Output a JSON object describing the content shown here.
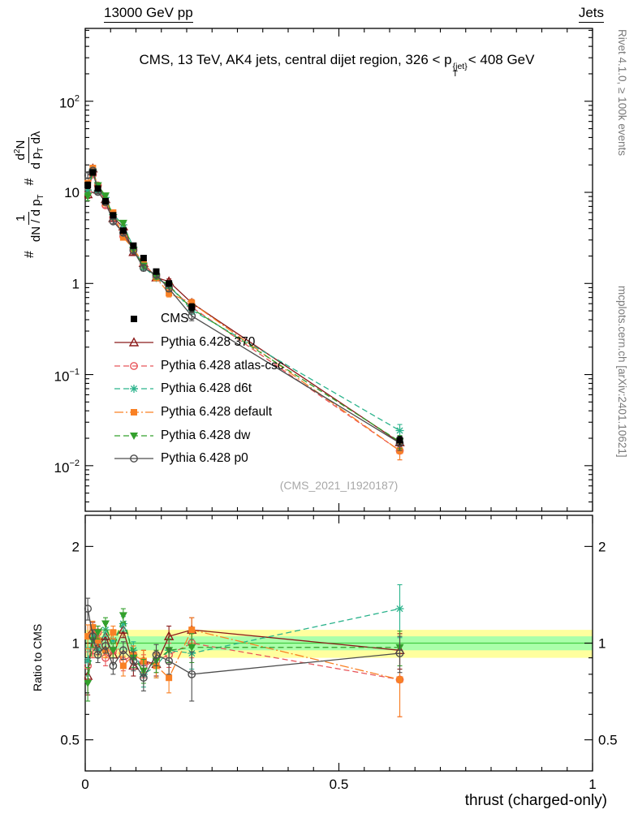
{
  "labels": {
    "header_left": "13000 GeV pp",
    "header_right": "Jets",
    "title_pre": "CMS, 13 TeV, AK4 jets, central dijet region, 326 < p",
    "title_sup": "{jet}",
    "title_sub": "T",
    "title_post": "< 408 GeV",
    "ylabel_ratio": "Ratio to CMS",
    "xlabel": "thrust (charged-only)",
    "watermark": "(CMS_2021_I1920187)",
    "side_top": "Rivet 4.1.0, ≥ 100k events",
    "side_bottom": "mcplots.cern.ch [arXiv:2401.10621]",
    "ylabel_main": {
      "hash1": "#",
      "num1": "1",
      "den1": "dN / d p",
      "den1_sub": "T",
      "hash2": "#",
      "num2_d": "d",
      "num2_exp": "2",
      "num2_N": "N",
      "den2": "d p",
      "den2_sub": "T",
      "den2_tail": " dλ"
    }
  },
  "chart_data": [
    {
      "type": "line",
      "id": "main",
      "title": "CMS, 13 TeV, AK4 jets, central dijet region, 326 < p_T^{jet} < 408 GeV",
      "ylabel": "# 1/(dN/dp_T) # d2N/(dp_T dλ)",
      "xlabel": "thrust (charged-only)",
      "x": [
        0.005,
        0.015,
        0.025,
        0.04,
        0.055,
        0.075,
        0.095,
        0.115,
        0.14,
        0.165,
        0.21,
        0.62
      ],
      "xaxis": {
        "min": 0,
        "max": 1,
        "majors": [
          0,
          0.5,
          1
        ],
        "minorStep": 0.05
      },
      "yaxis": {
        "scale": "log",
        "min": 0.00316,
        "max": 630,
        "ticks": [
          {
            "v": 100,
            "t": "10",
            "e": "2"
          },
          {
            "v": 10,
            "t": "10"
          },
          {
            "v": 1,
            "t": "1"
          },
          {
            "v": 0.1,
            "t": "10",
            "e": "−1"
          },
          {
            "v": 0.01,
            "t": "10",
            "e": "−2"
          }
        ]
      },
      "series": [
        {
          "label": "CMS",
          "color": "#000000",
          "marker": "square-filled",
          "line": "none",
          "values": [
            12,
            16.5,
            11,
            8,
            5.6,
            3.8,
            2.6,
            1.9,
            1.35,
            1.0,
            0.55,
            0.019
          ],
          "errors": [
            1.0,
            0.9,
            0.6,
            0.45,
            0.3,
            0.22,
            0.15,
            0.12,
            0.09,
            0.07,
            0.05,
            0.002
          ]
        },
        {
          "label": "Pythia 6.428 370",
          "color": "#8b1a1a",
          "marker": "triangle-open",
          "line": "solid",
          "values": [
            9.5,
            18.2,
            10.7,
            8.4,
            5.2,
            4.2,
            2.2,
            1.67,
            1.16,
            1.05,
            0.61,
            0.018
          ],
          "errors": [
            0.9,
            0.8,
            0.5,
            0.4,
            0.28,
            0.2,
            0.13,
            0.11,
            0.08,
            0.07,
            0.05,
            0.002
          ]
        },
        {
          "label": "Pythia 6.428 atlas-csc",
          "color": "#e8565b",
          "marker": "circle-open",
          "line": "dashed",
          "values": [
            10.2,
            15.7,
            11.9,
            7.2,
            5.3,
            3.3,
            2.4,
            1.62,
            1.19,
            0.92,
            0.55,
            0.0146
          ],
          "errors": [
            0.9,
            0.8,
            0.5,
            0.4,
            0.28,
            0.2,
            0.13,
            0.11,
            0.08,
            0.07,
            0.05,
            0.003
          ]
        },
        {
          "label": "Pythia 6.428 d6t",
          "color": "#2bb38c",
          "marker": "star",
          "line": "dashed",
          "values": [
            10.6,
            17.3,
            10.5,
            8.8,
            5.7,
            4.4,
            2.5,
            1.52,
            1.15,
            0.95,
            0.51,
            0.0243
          ],
          "errors": [
            0.9,
            0.8,
            0.5,
            0.4,
            0.28,
            0.2,
            0.13,
            0.11,
            0.08,
            0.07,
            0.05,
            0.004
          ]
        },
        {
          "label": "Pythia 6.428 default",
          "color": "#f98125",
          "marker": "square-filled",
          "line": "dashdot",
          "values": [
            12.6,
            18.5,
            11.2,
            7.6,
            6.0,
            3.2,
            2.4,
            1.67,
            1.15,
            0.78,
            0.61,
            0.0146
          ],
          "errors": [
            0.9,
            0.8,
            0.5,
            0.4,
            0.28,
            0.2,
            0.13,
            0.11,
            0.08,
            0.07,
            0.06,
            0.003
          ]
        },
        {
          "label": "Pythia 6.428 dw",
          "color": "#33a02c",
          "marker": "triangle-down-filled",
          "line": "dashed",
          "values": [
            9.0,
            16.8,
            11.9,
            9.2,
            5.3,
            4.6,
            2.3,
            1.56,
            1.19,
            0.95,
            0.53,
            0.0184
          ],
          "errors": [
            0.9,
            0.8,
            0.5,
            0.4,
            0.28,
            0.2,
            0.13,
            0.11,
            0.08,
            0.07,
            0.05,
            0.003
          ]
        },
        {
          "label": "Pythia 6.428 p0",
          "color": "#4d4d4d",
          "marker": "circle-open",
          "line": "solid",
          "values": [
            15.4,
            17.3,
            10.1,
            7.8,
            4.8,
            3.6,
            2.3,
            1.48,
            1.24,
            0.88,
            0.44,
            0.0177
          ],
          "errors": [
            1.0,
            0.8,
            0.5,
            0.4,
            0.28,
            0.2,
            0.13,
            0.11,
            0.08,
            0.07,
            0.05,
            0.003
          ]
        }
      ]
    },
    {
      "type": "line",
      "id": "ratio",
      "ylabel": "Ratio to CMS",
      "x": [
        0.005,
        0.015,
        0.025,
        0.04,
        0.055,
        0.075,
        0.095,
        0.115,
        0.14,
        0.165,
        0.21,
        0.62
      ],
      "xaxis": {
        "min": 0,
        "max": 1,
        "majors": [
          0,
          0.5,
          1
        ],
        "labels": [
          "0",
          "0.5",
          "1"
        ],
        "minorStep": 0.05
      },
      "yaxis": {
        "scale": "log",
        "min": 0.4,
        "max": 2.5,
        "ticks": [
          {
            "v": 2,
            "t": "2"
          },
          {
            "v": 1,
            "t": "1"
          },
          {
            "v": 0.5,
            "t": "0.5"
          }
        ]
      },
      "bands": [
        {
          "lo": 0.9,
          "hi": 1.1,
          "color": "#ffff9e"
        },
        {
          "lo": 0.95,
          "hi": 1.05,
          "color": "#aaffaa"
        }
      ],
      "centerline": {
        "v": 1,
        "color": "#44cc44"
      },
      "series": [
        {
          "label": "Pythia 6.428 370",
          "color": "#8b1a1a",
          "marker": "triangle-open",
          "line": "solid",
          "values": [
            0.79,
            1.1,
            0.97,
            1.05,
            0.92,
            1.1,
            0.85,
            0.88,
            0.86,
            1.05,
            1.1,
            0.95
          ],
          "errors": [
            0.1,
            0.06,
            0.05,
            0.05,
            0.05,
            0.06,
            0.06,
            0.07,
            0.07,
            0.08,
            0.1,
            0.12
          ]
        },
        {
          "label": "Pythia 6.428 atlas-csc",
          "color": "#e8565b",
          "marker": "circle-open",
          "line": "dashed",
          "values": [
            0.85,
            0.95,
            1.08,
            0.9,
            0.95,
            0.88,
            0.92,
            0.85,
            0.88,
            0.92,
            1.0,
            0.77
          ],
          "errors": [
            0.09,
            0.05,
            0.05,
            0.05,
            0.05,
            0.06,
            0.06,
            0.07,
            0.07,
            0.08,
            0.1,
            0.18
          ]
        },
        {
          "label": "Pythia 6.428 d6t",
          "color": "#2bb38c",
          "marker": "star",
          "line": "dashed",
          "values": [
            0.88,
            1.05,
            0.95,
            1.1,
            1.02,
            1.15,
            0.95,
            0.8,
            0.85,
            0.95,
            0.93,
            1.28
          ],
          "errors": [
            0.09,
            0.05,
            0.05,
            0.05,
            0.05,
            0.06,
            0.06,
            0.07,
            0.07,
            0.08,
            0.1,
            0.24
          ]
        },
        {
          "label": "Pythia 6.428 default",
          "color": "#f98125",
          "marker": "square-filled",
          "line": "dashdot",
          "values": [
            1.05,
            1.12,
            1.02,
            0.95,
            1.08,
            0.85,
            0.92,
            0.88,
            0.85,
            0.78,
            1.1,
            0.77
          ],
          "errors": [
            0.09,
            0.05,
            0.05,
            0.05,
            0.05,
            0.06,
            0.06,
            0.07,
            0.07,
            0.08,
            0.1,
            0.18
          ]
        },
        {
          "label": "Pythia 6.428 dw",
          "color": "#33a02c",
          "marker": "triangle-down-filled",
          "line": "dashed",
          "values": [
            0.75,
            1.02,
            1.08,
            1.15,
            0.95,
            1.22,
            0.9,
            0.82,
            0.88,
            0.95,
            0.97,
            0.97
          ],
          "errors": [
            0.09,
            0.05,
            0.05,
            0.05,
            0.05,
            0.06,
            0.06,
            0.07,
            0.07,
            0.08,
            0.1,
            0.12
          ]
        },
        {
          "label": "Pythia 6.428 p0",
          "color": "#4d4d4d",
          "marker": "circle-open",
          "line": "solid",
          "values": [
            1.28,
            1.05,
            0.92,
            0.98,
            0.85,
            0.95,
            0.88,
            0.78,
            0.92,
            0.88,
            0.8,
            0.93
          ],
          "errors": [
            0.1,
            0.05,
            0.05,
            0.05,
            0.05,
            0.06,
            0.06,
            0.07,
            0.07,
            0.08,
            0.14,
            0.12
          ]
        }
      ]
    }
  ]
}
